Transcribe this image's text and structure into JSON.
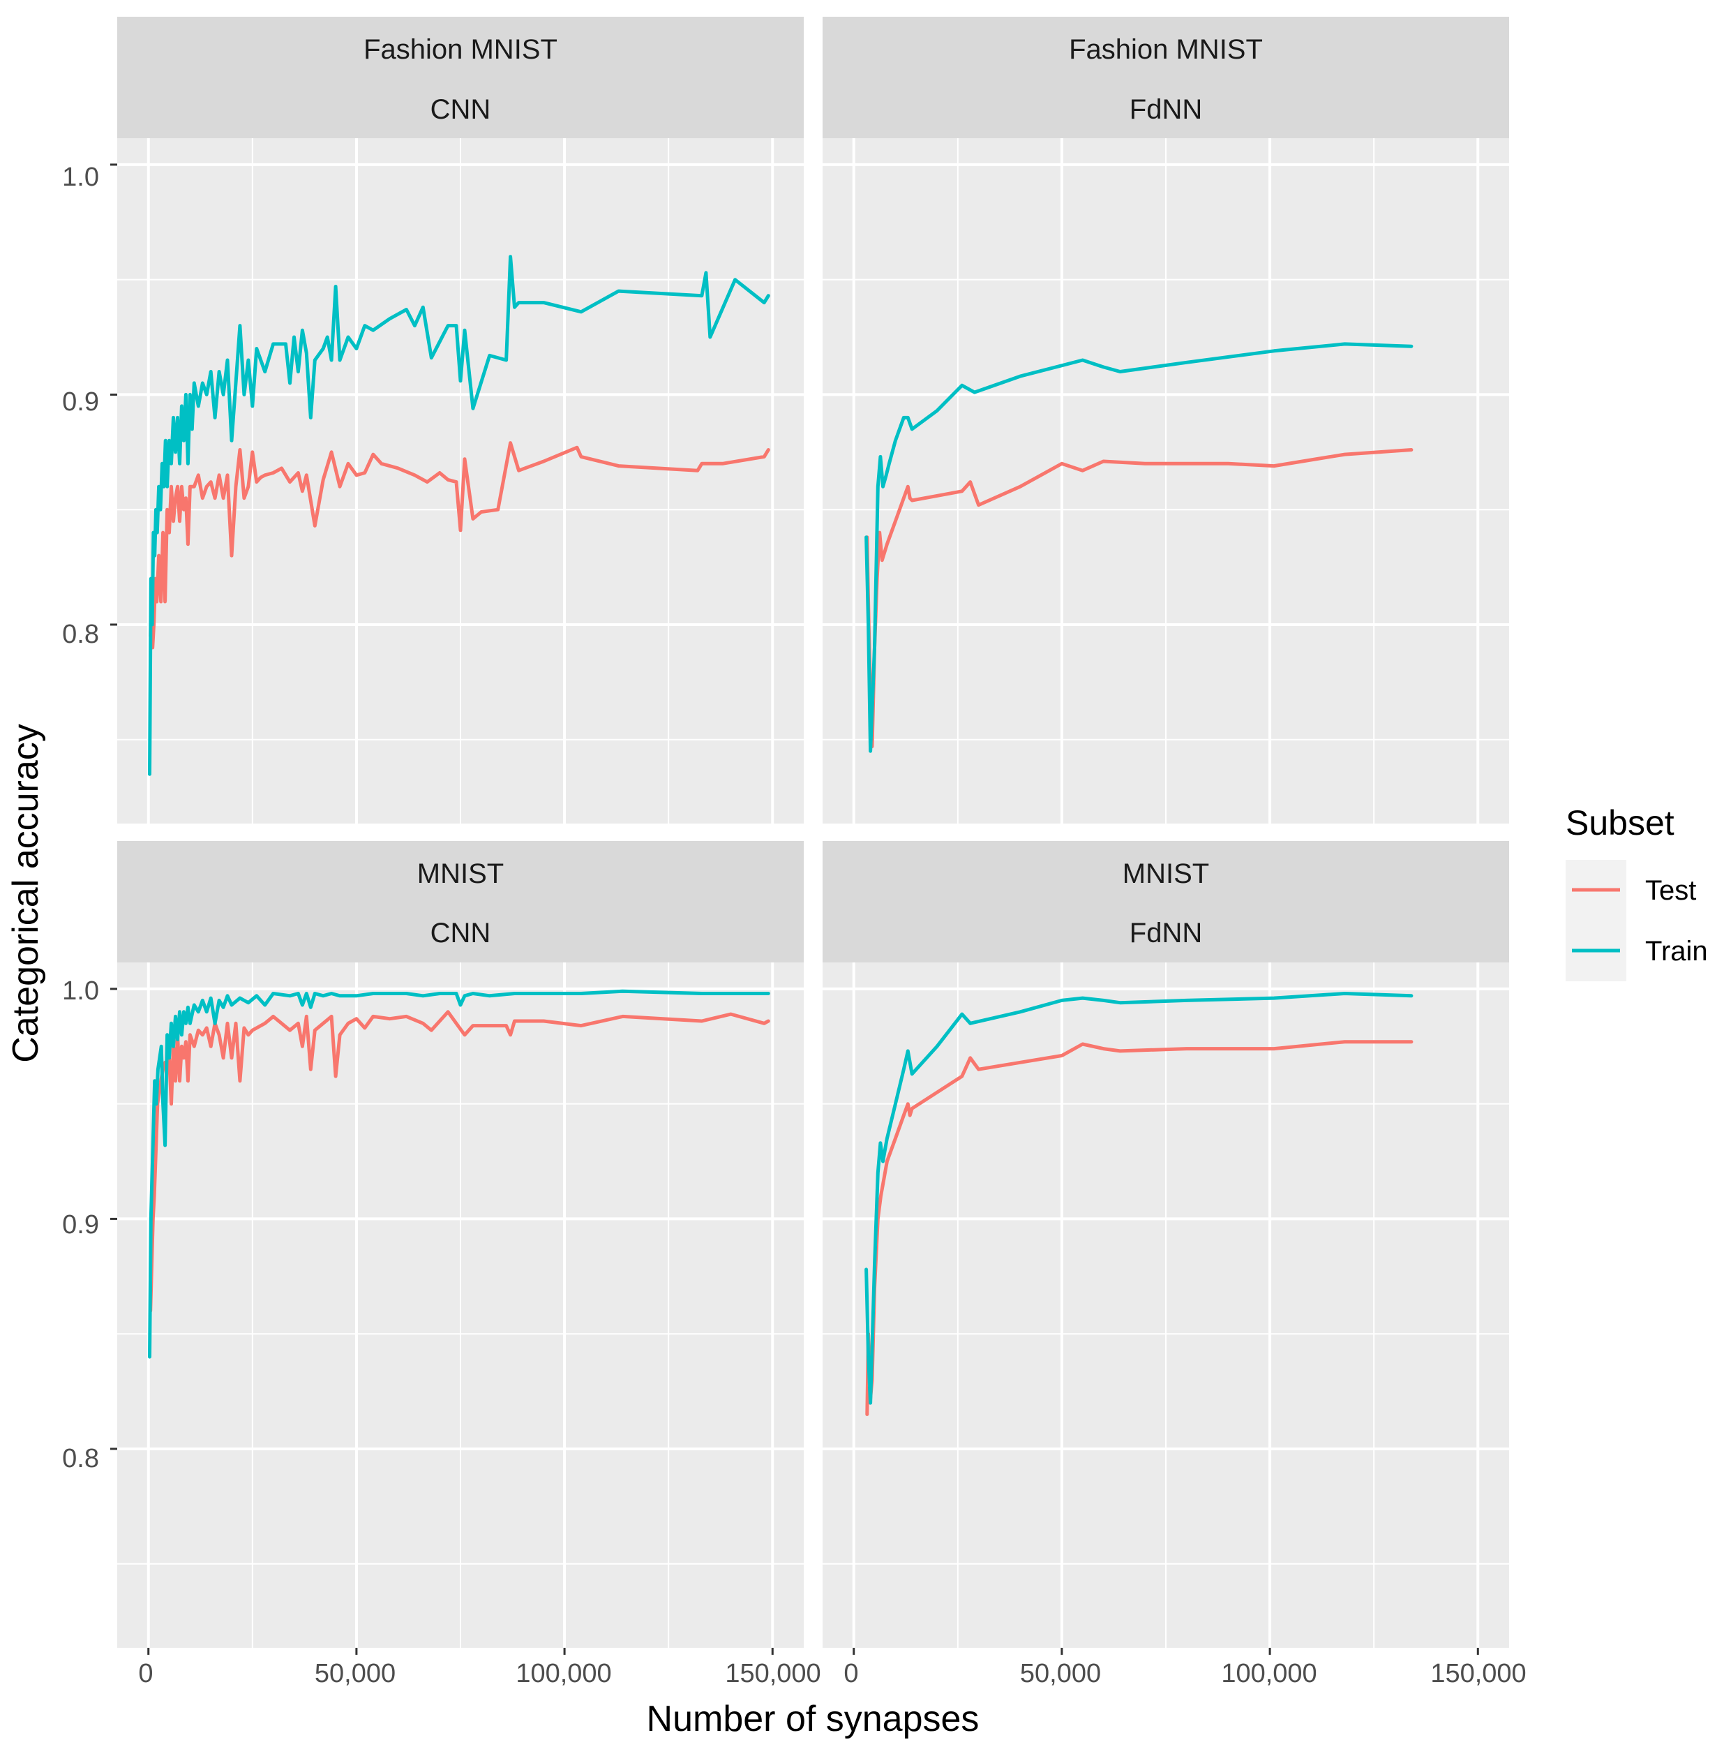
{
  "chart_data": {
    "type": "line",
    "xlabel": "Number of synapses",
    "ylabel": "Categorical accuracy",
    "xlim": [
      -7500,
      157500
    ],
    "ylim": [
      0.7135,
      1.0115
    ],
    "x_ticks": [
      0,
      50000,
      100000,
      150000
    ],
    "x_tick_labels": [
      "0",
      "50,000",
      "100,000",
      "150,000"
    ],
    "y_ticks": [
      0.8,
      0.9,
      1.0
    ],
    "y_tick_labels": [
      "0.8",
      "0.9",
      "1.0"
    ],
    "legend": {
      "title": "Subset",
      "position": "right",
      "entries": [
        {
          "name": "Test",
          "color": "#F8766D"
        },
        {
          "name": "Train",
          "color": "#00BFC4"
        }
      ]
    },
    "panels": [
      {
        "dataset": "Fashion MNIST",
        "model": "CNN",
        "series": [
          {
            "name": "Test",
            "color": "#F8766D",
            "x": [
              500,
              700,
              1000,
              1300,
              1700,
              2000,
              2500,
              3000,
              3500,
              4000,
              4500,
              5000,
              5500,
              6000,
              6500,
              7000,
              7500,
              8000,
              8500,
              9000,
              9500,
              10000,
              11000,
              12000,
              13000,
              14000,
              15000,
              16000,
              17000,
              18000,
              19000,
              20000,
              21000,
              22000,
              23000,
              24000,
              25000,
              26000,
              27000,
              28000,
              30000,
              32000,
              34000,
              36000,
              37000,
              38000,
              40000,
              42000,
              44000,
              46000,
              48000,
              50000,
              52000,
              54000,
              56000,
              60000,
              64000,
              67000,
              70000,
              72000,
              74000,
              75000,
              76000,
              78000,
              80000,
              84000,
              87000,
              89000,
              95000,
              103000,
              104000,
              113000,
              132000,
              133000,
              138000,
              148000,
              149000
            ],
            "y": [
              0.795,
              0.81,
              0.79,
              0.8,
              0.82,
              0.81,
              0.83,
              0.81,
              0.84,
              0.81,
              0.85,
              0.84,
              0.86,
              0.845,
              0.855,
              0.86,
              0.845,
              0.86,
              0.85,
              0.855,
              0.835,
              0.86,
              0.86,
              0.865,
              0.855,
              0.86,
              0.862,
              0.855,
              0.865,
              0.855,
              0.865,
              0.83,
              0.86,
              0.876,
              0.855,
              0.86,
              0.875,
              0.862,
              0.864,
              0.865,
              0.866,
              0.868,
              0.862,
              0.866,
              0.858,
              0.865,
              0.843,
              0.863,
              0.875,
              0.86,
              0.87,
              0.865,
              0.866,
              0.874,
              0.87,
              0.868,
              0.865,
              0.862,
              0.866,
              0.863,
              0.862,
              0.841,
              0.872,
              0.846,
              0.849,
              0.85,
              0.879,
              0.867,
              0.871,
              0.877,
              0.873,
              0.869,
              0.867,
              0.87,
              0.87,
              0.873,
              0.876
            ]
          },
          {
            "name": "Train",
            "color": "#00BFC4",
            "x": [
              300,
              600,
              900,
              1200,
              1500,
              1800,
              2100,
              2500,
              2900,
              3300,
              3700,
              4100,
              4500,
              5000,
              5500,
              6000,
              6500,
              7000,
              7500,
              8000,
              8500,
              9000,
              9500,
              10000,
              10500,
              11000,
              12000,
              13000,
              14000,
              15000,
              16000,
              17000,
              18000,
              19000,
              20000,
              21000,
              22000,
              23000,
              24000,
              25000,
              26000,
              28000,
              30000,
              33000,
              34000,
              35000,
              36000,
              37000,
              38000,
              39000,
              40000,
              42000,
              43000,
              44000,
              45000,
              46000,
              48000,
              50000,
              52000,
              54000,
              58000,
              62000,
              64000,
              66000,
              68000,
              72000,
              74000,
              75000,
              76000,
              78000,
              82000,
              86000,
              87000,
              88000,
              89000,
              95000,
              104000,
              113000,
              133000,
              134000,
              135000,
              141000,
              148000,
              149000
            ],
            "y": [
              0.735,
              0.82,
              0.8,
              0.84,
              0.83,
              0.85,
              0.84,
              0.86,
              0.85,
              0.87,
              0.86,
              0.88,
              0.86,
              0.88,
              0.87,
              0.89,
              0.875,
              0.89,
              0.87,
              0.895,
              0.88,
              0.9,
              0.87,
              0.9,
              0.885,
              0.905,
              0.895,
              0.905,
              0.9,
              0.91,
              0.89,
              0.91,
              0.9,
              0.915,
              0.88,
              0.905,
              0.93,
              0.9,
              0.915,
              0.895,
              0.92,
              0.91,
              0.922,
              0.922,
              0.905,
              0.925,
              0.91,
              0.928,
              0.918,
              0.89,
              0.915,
              0.92,
              0.925,
              0.915,
              0.947,
              0.915,
              0.925,
              0.92,
              0.93,
              0.928,
              0.933,
              0.937,
              0.93,
              0.938,
              0.916,
              0.93,
              0.93,
              0.906,
              0.928,
              0.894,
              0.917,
              0.915,
              0.96,
              0.938,
              0.94,
              0.94,
              0.936,
              0.945,
              0.943,
              0.953,
              0.925,
              0.95,
              0.94,
              0.943
            ]
          }
        ]
      },
      {
        "dataset": "Fashion MNIST",
        "model": "FdNN",
        "series": [
          {
            "name": "Test",
            "color": "#F8766D",
            "x": [
              3200,
              3600,
              4000,
              4400,
              5000,
              5600,
              6200,
              6800,
              8000,
              10000,
              12000,
              13000,
              13500,
              14000,
              20000,
              26000,
              28000,
              30000,
              40000,
              50000,
              55000,
              60000,
              70000,
              80000,
              90000,
              101000,
              118000,
              134000
            ],
            "y": [
              0.838,
              0.8,
              0.77,
              0.747,
              0.79,
              0.82,
              0.84,
              0.828,
              0.835,
              0.845,
              0.855,
              0.86,
              0.855,
              0.854,
              0.856,
              0.858,
              0.862,
              0.852,
              0.86,
              0.87,
              0.867,
              0.871,
              0.87,
              0.87,
              0.87,
              0.869,
              0.874,
              0.876
            ]
          },
          {
            "name": "Train",
            "color": "#00BFC4",
            "x": [
              3000,
              3500,
              4000,
              5000,
              5800,
              6400,
              7000,
              7800,
              8500,
              10000,
              12000,
              13000,
              14000,
              20000,
              26000,
              29000,
              40000,
              55000,
              60000,
              64000,
              80000,
              101000,
              118000,
              134000
            ],
            "y": [
              0.838,
              0.8,
              0.745,
              0.79,
              0.86,
              0.873,
              0.86,
              0.865,
              0.87,
              0.88,
              0.89,
              0.89,
              0.885,
              0.893,
              0.904,
              0.901,
              0.908,
              0.915,
              0.912,
              0.91,
              0.914,
              0.919,
              0.922,
              0.921
            ]
          }
        ]
      },
      {
        "dataset": "MNIST",
        "model": "CNN",
        "series": [
          {
            "name": "Test",
            "color": "#F8766D",
            "x": [
              500,
              800,
              1100,
              1400,
              1800,
              2200,
              2600,
              3000,
              3500,
              4000,
              4500,
              5000,
              5500,
              6000,
              6500,
              7000,
              7500,
              8000,
              8500,
              9000,
              9500,
              10000,
              11000,
              12000,
              13000,
              14000,
              15000,
              16000,
              17000,
              18000,
              19000,
              20000,
              21000,
              22000,
              23000,
              24000,
              25000,
              28000,
              30000,
              32000,
              34000,
              36000,
              37000,
              38000,
              39000,
              40000,
              42000,
              44000,
              45000,
              46000,
              48000,
              50000,
              52000,
              54000,
              58000,
              62000,
              66000,
              68000,
              72000,
              74000,
              76000,
              78000,
              80000,
              86000,
              87000,
              88000,
              95000,
              104000,
              114000,
              133000,
              140000,
              148000,
              149000
            ],
            "y": [
              0.86,
              0.88,
              0.9,
              0.91,
              0.93,
              0.95,
              0.955,
              0.96,
              0.965,
              0.968,
              0.965,
              0.97,
              0.95,
              0.975,
              0.96,
              0.98,
              0.96,
              0.975,
              0.97,
              0.977,
              0.96,
              0.98,
              0.975,
              0.982,
              0.98,
              0.983,
              0.975,
              0.985,
              0.98,
              0.97,
              0.985,
              0.97,
              0.985,
              0.96,
              0.983,
              0.98,
              0.982,
              0.985,
              0.988,
              0.985,
              0.982,
              0.985,
              0.975,
              0.988,
              0.965,
              0.982,
              0.985,
              0.988,
              0.962,
              0.98,
              0.985,
              0.987,
              0.983,
              0.988,
              0.987,
              0.988,
              0.985,
              0.982,
              0.99,
              0.985,
              0.98,
              0.984,
              0.984,
              0.984,
              0.98,
              0.986,
              0.986,
              0.984,
              0.988,
              0.986,
              0.989,
              0.985,
              0.986
            ]
          },
          {
            "name": "Train",
            "color": "#00BFC4",
            "x": [
              300,
              600,
              900,
              1200,
              1500,
              1900,
              2300,
              2700,
              3100,
              3500,
              4000,
              4500,
              5000,
              5500,
              6000,
              6500,
              7000,
              7500,
              8000,
              8500,
              9000,
              9500,
              10000,
              11000,
              12000,
              13000,
              14000,
              15000,
              16000,
              17000,
              18000,
              19000,
              20000,
              22000,
              24000,
              26000,
              28000,
              30000,
              34000,
              36000,
              37000,
              38000,
              39000,
              40000,
              42000,
              44000,
              46000,
              50000,
              54000,
              58000,
              62000,
              66000,
              70000,
              74000,
              75000,
              76000,
              78000,
              82000,
              88000,
              95000,
              104000,
              114000,
              133000,
              140000,
              149000
            ],
            "y": [
              0.84,
              0.9,
              0.92,
              0.94,
              0.96,
              0.95,
              0.965,
              0.97,
              0.975,
              0.95,
              0.932,
              0.98,
              0.97,
              0.985,
              0.975,
              0.988,
              0.978,
              0.99,
              0.98,
              0.99,
              0.985,
              0.992,
              0.985,
              0.993,
              0.99,
              0.995,
              0.99,
              0.996,
              0.985,
              0.995,
              0.992,
              0.997,
              0.993,
              0.996,
              0.994,
              0.997,
              0.993,
              0.998,
              0.997,
              0.998,
              0.993,
              0.998,
              0.992,
              0.998,
              0.997,
              0.998,
              0.997,
              0.997,
              0.998,
              0.998,
              0.998,
              0.997,
              0.998,
              0.998,
              0.993,
              0.997,
              0.998,
              0.997,
              0.998,
              0.998,
              0.998,
              0.999,
              0.998,
              0.998,
              0.998
            ]
          }
        ]
      },
      {
        "dataset": "MNIST",
        "model": "FdNN",
        "series": [
          {
            "name": "Test",
            "color": "#F8766D",
            "x": [
              3200,
              3500,
              3900,
              4400,
              5000,
              5800,
              6500,
              7000,
              8000,
              10000,
              12000,
              13000,
              13500,
              14000,
              20000,
              26000,
              28000,
              30000,
              40000,
              50000,
              55000,
              60000,
              64000,
              80000,
              101000,
              118000,
              134000
            ],
            "y": [
              0.815,
              0.85,
              0.82,
              0.83,
              0.87,
              0.9,
              0.91,
              0.915,
              0.925,
              0.935,
              0.945,
              0.95,
              0.945,
              0.948,
              0.955,
              0.962,
              0.97,
              0.965,
              0.968,
              0.971,
              0.976,
              0.974,
              0.973,
              0.974,
              0.974,
              0.977,
              0.977
            ]
          },
          {
            "name": "Train",
            "color": "#00BFC4",
            "x": [
              3000,
              3500,
              4000,
              5000,
              5800,
              6400,
              7000,
              8000,
              10000,
              12000,
              13000,
              14000,
              20000,
              26000,
              28000,
              40000,
              50000,
              55000,
              60000,
              64000,
              80000,
              101000,
              118000,
              134000
            ],
            "y": [
              0.878,
              0.84,
              0.82,
              0.88,
              0.92,
              0.933,
              0.925,
              0.935,
              0.95,
              0.965,
              0.973,
              0.963,
              0.975,
              0.989,
              0.985,
              0.99,
              0.995,
              0.996,
              0.995,
              0.994,
              0.995,
              0.996,
              0.998,
              0.997
            ]
          }
        ]
      }
    ]
  }
}
